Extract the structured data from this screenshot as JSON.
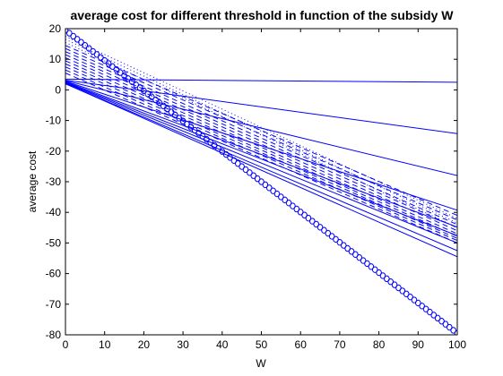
{
  "chart_data": {
    "type": "line",
    "title": "average cost for different threshold in function of the subsidy W",
    "xlabel": "W",
    "ylabel": "average cost",
    "xlim": [
      0,
      100
    ],
    "ylim": [
      -80,
      20
    ],
    "xticks": [
      "0",
      "10",
      "20",
      "30",
      "40",
      "50",
      "60",
      "70",
      "80",
      "90",
      "100"
    ],
    "yticks": [
      "20",
      "10",
      "0",
      "-10",
      "-20",
      "-30",
      "-40",
      "-50",
      "-60",
      "-70",
      "-80"
    ],
    "grid": false,
    "color": "#0000ff",
    "solid_series": [
      {
        "x": [
          0,
          100
        ],
        "y": [
          3.5,
          2.5
        ]
      },
      {
        "x": [
          0,
          100
        ],
        "y": [
          3.2,
          -14.3
        ]
      },
      {
        "x": [
          0,
          100
        ],
        "y": [
          3.0,
          -28.0
        ]
      },
      {
        "x": [
          0,
          100
        ],
        "y": [
          2.8,
          -39.3
        ]
      },
      {
        "x": [
          0,
          100
        ],
        "y": [
          2.6,
          -44.8
        ]
      },
      {
        "x": [
          0,
          100
        ],
        "y": [
          2.4,
          -47.6
        ]
      },
      {
        "x": [
          0,
          100
        ],
        "y": [
          2.2,
          -50.0
        ]
      },
      {
        "x": [
          0,
          100
        ],
        "y": [
          2.0,
          -52.5
        ]
      },
      {
        "x": [
          0,
          100
        ],
        "y": [
          2.0,
          -54.5
        ]
      }
    ],
    "dashed_series": [
      {
        "x": [
          0,
          100
        ],
        "y": [
          14.5,
          -41.0
        ]
      },
      {
        "x": [
          0,
          100
        ],
        "y": [
          13.5,
          -42.5
        ]
      },
      {
        "x": [
          0,
          100
        ],
        "y": [
          12.5,
          -44.0
        ]
      },
      {
        "x": [
          0,
          100
        ],
        "y": [
          11.5,
          -45.0
        ]
      },
      {
        "x": [
          0,
          100
        ],
        "y": [
          10.5,
          -46.0
        ]
      },
      {
        "x": [
          0,
          100
        ],
        "y": [
          9.5,
          -47.0
        ]
      },
      {
        "x": [
          0,
          100
        ],
        "y": [
          8.5,
          -47.8
        ]
      },
      {
        "x": [
          0,
          100
        ],
        "y": [
          7.5,
          -48.5
        ]
      },
      {
        "x": [
          0,
          100
        ],
        "y": [
          6.5,
          -49.2
        ]
      },
      {
        "x": [
          0,
          100
        ],
        "y": [
          5.5,
          -50.0
        ]
      }
    ],
    "dotted_series": [
      {
        "x": [
          0,
          100
        ],
        "y": [
          17.5,
          -42.0
        ]
      },
      {
        "x": [
          0,
          100
        ],
        "y": [
          16.5,
          -43.5
        ]
      },
      {
        "x": [
          0,
          100
        ],
        "y": [
          15.5,
          -45.0
        ]
      }
    ],
    "marker_series": {
      "marker": "circle",
      "x_start": 0,
      "x_end": 100,
      "step": 1,
      "y_start": 19.5,
      "y_end": -79.5
    }
  }
}
